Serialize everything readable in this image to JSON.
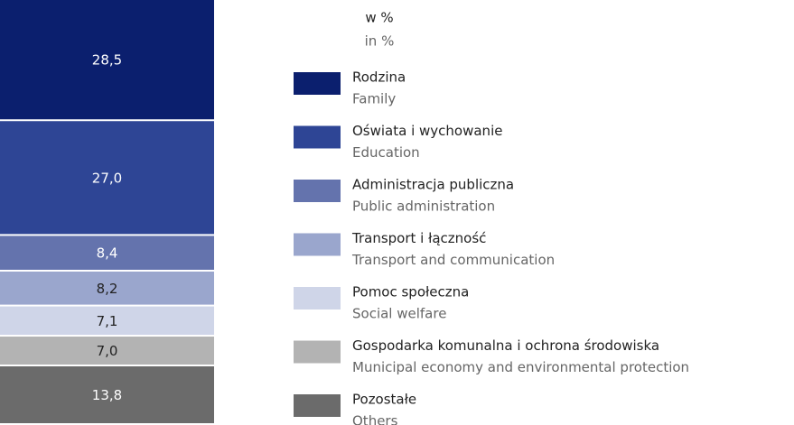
{
  "chart_data": {
    "type": "stacked_bar",
    "unit": "w %",
    "unit_en": "in %",
    "ylim": [
      0,
      100
    ],
    "series": [
      {
        "name": "Rodzina",
        "name_en": "Family",
        "color": "#0b1f6e",
        "values": [
          28.5
        ],
        "value_labels": [
          "28,5"
        ]
      },
      {
        "name": "Oświata i wychowanie",
        "name_en": "Education",
        "color": "#2e4595",
        "values": [
          27.0
        ],
        "value_labels": [
          "27,0"
        ]
      },
      {
        "name": "Administracja publiczna",
        "name_en": "Public administration",
        "color": "#6473ad",
        "values": [
          8.4
        ],
        "value_labels": [
          "8,4"
        ]
      },
      {
        "name": "Transport i łączność",
        "name_en": "Transport and communication",
        "color": "#9aa6cd",
        "values": [
          8.2
        ],
        "value_labels": [
          "8,2"
        ]
      },
      {
        "name": "Pomoc społeczna",
        "name_en": "Social welfare",
        "color": "#cfd5e8",
        "values": [
          7.1
        ],
        "value_labels": [
          "7,1"
        ]
      },
      {
        "name": "Gospodarka komunalna i ochrona środowiska",
        "name_en": "Municipal economy and environmental protection",
        "color": "#b3b3b3",
        "values": [
          7.0
        ],
        "value_labels": [
          "7,0"
        ]
      },
      {
        "name": "Pozostałe",
        "name_en": "Others",
        "color": "#6b6b6b",
        "values": [
          13.8
        ],
        "value_labels": [
          "13,8"
        ]
      }
    ]
  }
}
